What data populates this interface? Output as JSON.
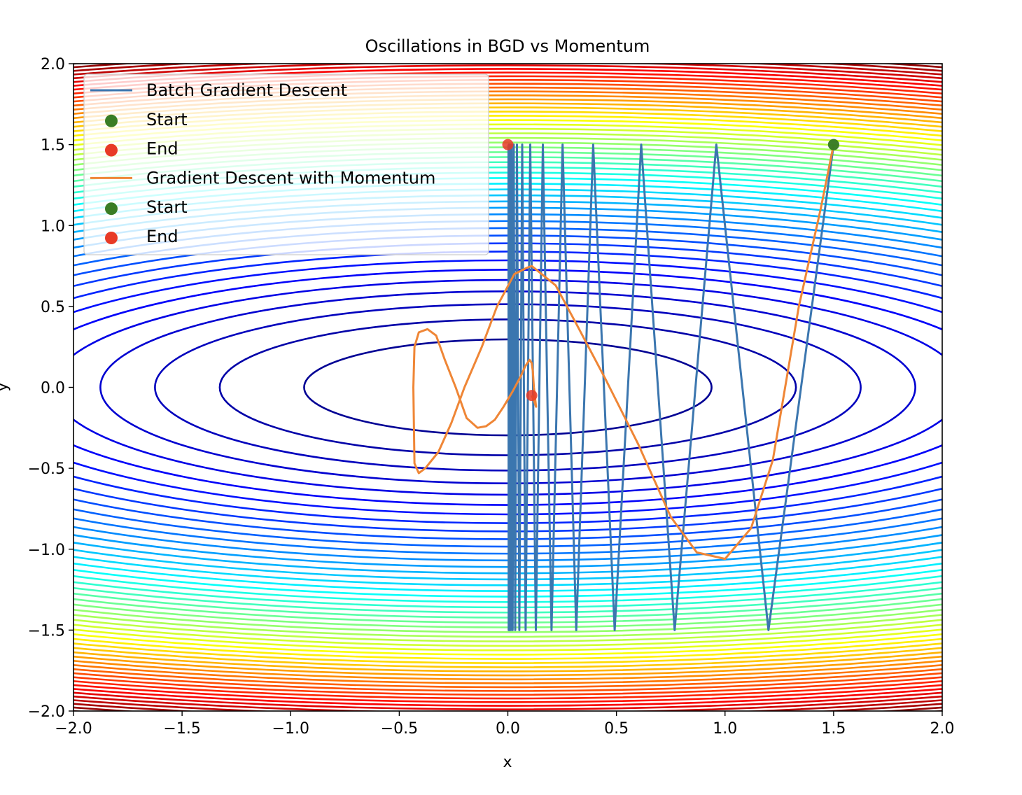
{
  "chart_data": {
    "type": "line",
    "title": "Oscillations in BGD vs Momentum",
    "xlabel": "x",
    "ylabel": "y",
    "xlim": [
      -2.0,
      2.0
    ],
    "ylim": [
      -2.0,
      2.0
    ],
    "xticks": [
      "−2.0",
      "−1.5",
      "−1.0",
      "−0.5",
      "0.0",
      "0.5",
      "1.0",
      "1.5",
      "2.0"
    ],
    "yticks": [
      "−2.0",
      "−1.5",
      "−1.0",
      "−0.5",
      "0.0",
      "0.5",
      "1.0",
      "1.5",
      "2.0"
    ],
    "xtick_values": [
      -2.0,
      -1.5,
      -1.0,
      -0.5,
      0.0,
      0.5,
      1.0,
      1.5,
      2.0
    ],
    "ytick_values": [
      -2.0,
      -1.5,
      -1.0,
      -0.5,
      0.0,
      0.5,
      1.0,
      1.5,
      2.0
    ],
    "grid": false,
    "background": "contour plot of f(x, y) = x^2 + 10*y^2, jet colormap",
    "legend_placement": "upper-left",
    "series": [
      {
        "name": "Batch Gradient Descent",
        "color": "#3b76af",
        "x": [
          1.5,
          1.2,
          0.96,
          0.768,
          0.614,
          0.492,
          0.393,
          0.315,
          0.252,
          0.201,
          0.161,
          0.129,
          0.103,
          0.082,
          0.066,
          0.053,
          0.042,
          0.034,
          0.027,
          0.022,
          0.017,
          0.014,
          0.011,
          0.009,
          0.007,
          0.006,
          0.005,
          0.004,
          0.003,
          0.002
        ],
        "y": [
          1.5,
          -1.5,
          1.5,
          -1.5,
          1.5,
          -1.5,
          1.5,
          -1.5,
          1.5,
          -1.5,
          1.5,
          -1.5,
          1.5,
          -1.5,
          1.5,
          -1.5,
          1.5,
          -1.5,
          1.5,
          -1.5,
          1.5,
          -1.5,
          1.5,
          -1.5,
          1.5,
          -1.5,
          1.5,
          -1.5,
          1.5,
          1.5
        ]
      },
      {
        "name": "Gradient Descent with Momentum",
        "color": "#ef8636",
        "x": [
          1.5,
          1.44,
          1.34,
          1.22,
          1.12,
          1.0,
          0.87,
          0.75,
          0.6,
          0.45,
          0.32,
          0.22,
          0.11,
          0.09,
          0.03,
          -0.05,
          -0.12,
          -0.2,
          -0.26,
          -0.32,
          -0.38,
          -0.41,
          -0.43,
          -0.435,
          -0.43,
          -0.41,
          -0.37,
          -0.33,
          -0.29,
          -0.24,
          -0.19,
          -0.14,
          -0.1,
          -0.06,
          -0.02,
          0.02,
          0.06,
          0.08,
          0.1,
          0.11,
          0.115,
          0.12,
          0.13,
          0.12,
          0.11
        ],
        "y": [
          1.5,
          1.1,
          0.5,
          -0.45,
          -0.87,
          -1.06,
          -1.02,
          -0.8,
          -0.35,
          0.05,
          0.38,
          0.63,
          0.75,
          0.74,
          0.7,
          0.5,
          0.25,
          0.0,
          -0.22,
          -0.4,
          -0.5,
          -0.53,
          -0.47,
          0.0,
          0.25,
          0.34,
          0.36,
          0.32,
          0.17,
          0.0,
          -0.19,
          -0.25,
          -0.24,
          -0.2,
          -0.12,
          -0.03,
          0.07,
          0.13,
          0.17,
          0.15,
          0.1,
          0.0,
          -0.12,
          -0.08,
          -0.05
        ]
      }
    ],
    "markers": [
      {
        "label": "Start",
        "series": "Batch Gradient Descent",
        "x": 1.5,
        "y": 1.5,
        "color": "#3a7d24"
      },
      {
        "label": "End",
        "series": "Batch Gradient Descent",
        "x": 0.0,
        "y": 1.5,
        "color": "#e83a26"
      },
      {
        "label": "Start",
        "series": "Gradient Descent with Momentum",
        "x": 1.5,
        "y": 1.5,
        "color": "#3a7d24"
      },
      {
        "label": "End",
        "series": "Gradient Descent with Momentum",
        "x": 0.11,
        "y": -0.05,
        "color": "#e83a26"
      }
    ],
    "legend": [
      {
        "label": "Batch Gradient Descent",
        "kind": "line",
        "color": "#3b76af"
      },
      {
        "label": "Start",
        "kind": "dot",
        "color": "#3a7d24"
      },
      {
        "label": "End",
        "kind": "dot",
        "color": "#e83a26"
      },
      {
        "label": "Gradient Descent with Momentum",
        "kind": "line",
        "color": "#ef8636"
      },
      {
        "label": "Start",
        "kind": "dot",
        "color": "#3a7d24"
      },
      {
        "label": "End",
        "kind": "dot",
        "color": "#e83a26"
      }
    ]
  }
}
